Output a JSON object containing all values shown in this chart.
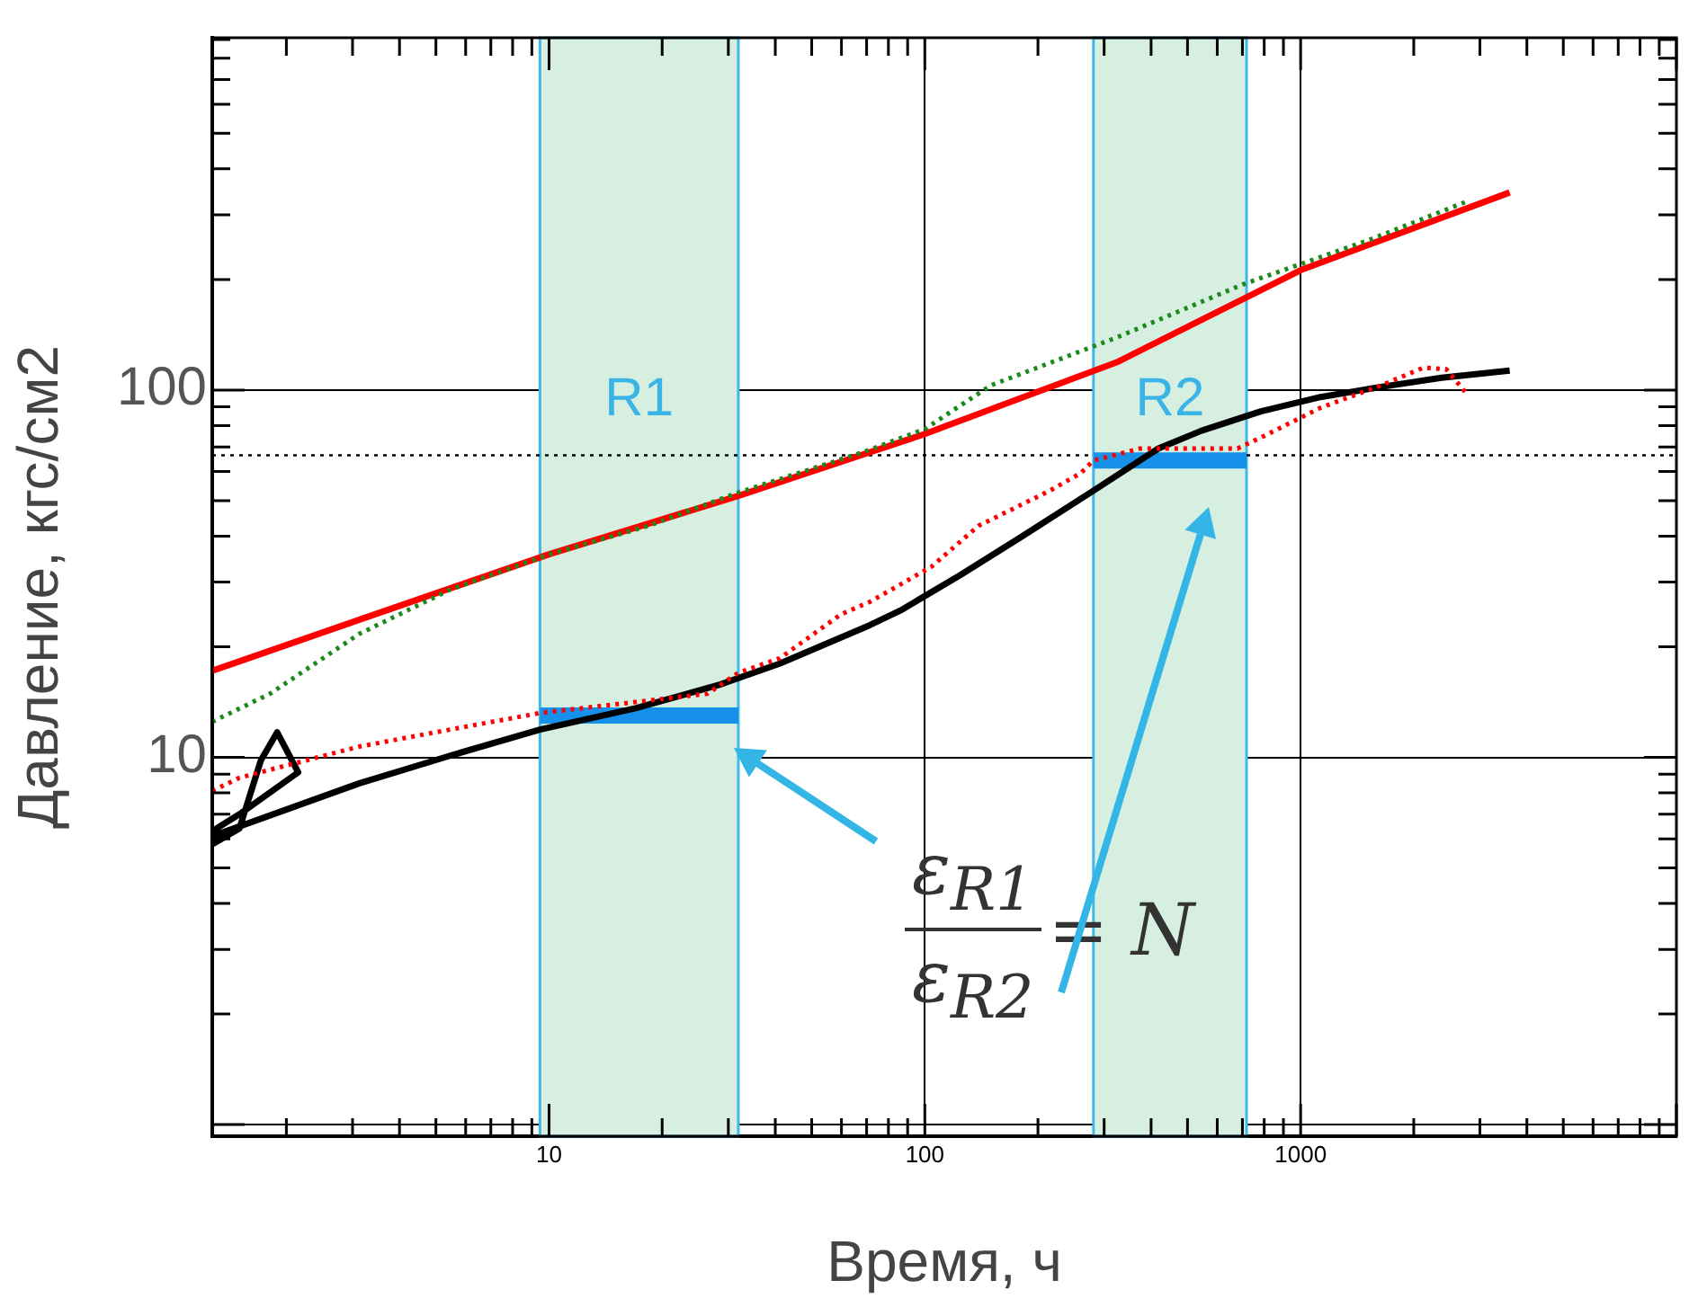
{
  "chart_data": {
    "type": "line",
    "xlabel": "Время, ч",
    "ylabel": "Давление, кгс/см2",
    "log": "xy",
    "grid": true,
    "legend": false,
    "xlim": [
      1.27,
      10000
    ],
    "ylim": [
      0.93,
      910
    ],
    "xticks": [
      10,
      100,
      1000,
      {
        "value": 10000,
        "label": null
      }
    ],
    "yticks": [
      {
        "value": 1,
        "label": null
      },
      10,
      100
    ],
    "series": [
      {
        "type": "line",
        "line_style": "dotted",
        "color": "#1a8a1a",
        "x": [
          1.27,
          1.81,
          3.13,
          5.45,
          10,
          18.4,
          31.9,
          69.0,
          100,
          150,
          324,
          703,
          1520,
          2790
        ],
        "values": [
          12.5,
          14.9,
          21.7,
          28.6,
          35.7,
          42.7,
          52.6,
          67.9,
          78.3,
          103,
          139,
          194,
          256,
          327
        ]
      },
      {
        "type": "line",
        "line_style": "solid",
        "color": "#ff0000",
        "x": [
          1.27,
          3.13,
          10,
          31.9,
          100,
          324,
          1000,
          3600
        ],
        "values": [
          17.2,
          23.7,
          35.7,
          51.5,
          75.9,
          119,
          212,
          345
        ]
      },
      {
        "type": "line",
        "line_style": "dotted",
        "color": "#ff0000",
        "x": [
          1.27,
          1.5,
          3.13,
          5.45,
          9.46,
          26.4,
          31.9,
          41.1,
          59.8,
          71.4,
          104,
          139,
          215,
          260,
          281,
          374,
          679,
          784,
          1130,
          1640,
          2120,
          2440,
          2790
        ],
        "values": [
          8.1,
          8.8,
          10.7,
          11.9,
          13.2,
          14.9,
          17.0,
          18.6,
          24.5,
          26.5,
          33.0,
          42.7,
          53.2,
          59.4,
          64.3,
          69.3,
          69.3,
          74.2,
          89.5,
          103,
          115,
          114,
          96.7
        ]
      },
      {
        "type": "line",
        "line_style": "solid",
        "color": "#000000",
        "x": [
          1.27,
          1.5,
          1.71,
          1.89,
          2.15,
          1.5,
          1.27,
          1.27,
          3.13,
          5.45,
          9.46,
          17.0,
          28.6,
          41.1,
          71.4,
          86.1,
          124,
          181,
          281,
          418,
          545,
          784,
          1130,
          1640,
          2370,
          3600
        ],
        "values": [
          5.8,
          6.4,
          9.8,
          11.7,
          9.1,
          7.0,
          6.3,
          6.1,
          8.5,
          10.1,
          11.9,
          13.6,
          15.8,
          18.0,
          22.9,
          25.1,
          31.3,
          39.9,
          53.2,
          69.3,
          77.5,
          87.5,
          95.7,
          102,
          108,
          113
        ]
      },
      {
        "type": "line",
        "line_style": "solid",
        "color": "#1591ea",
        "x": [
          9.46,
          31.9
        ],
        "values": [
          13.0,
          13.0
        ]
      },
      {
        "type": "line",
        "line_style": "solid",
        "color": "#1591ea",
        "x": [
          281,
          718
        ],
        "values": [
          64.3,
          64.3
        ]
      }
    ],
    "bands": [
      {
        "axis": "x",
        "from": 9.46,
        "to": 31.9,
        "label": "R1",
        "color": "#d6efe0"
      },
      {
        "axis": "x",
        "from": 281,
        "to": 718,
        "label": "R2",
        "color": "#d6efe0"
      }
    ],
    "ref_lines": [
      {
        "axis": "y",
        "value": 66.4,
        "line_style": "dotted",
        "color": "#000000"
      }
    ],
    "annotations": [
      "ε$_{R1}$",
      "ε$_{R2}$",
      "= N"
    ]
  }
}
